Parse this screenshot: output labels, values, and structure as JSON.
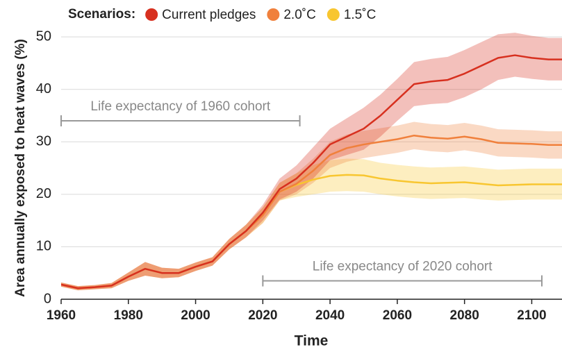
{
  "chart_data": {
    "type": "line",
    "legend_title": "Scenarios:",
    "y_label": "Area annually exposed to heat waves (%)",
    "x_label": "Time",
    "x": [
      1960,
      1965,
      1970,
      1975,
      1980,
      1985,
      1990,
      1995,
      2000,
      2005,
      2010,
      2015,
      2020,
      2025,
      2030,
      2035,
      2040,
      2045,
      2050,
      2055,
      2060,
      2065,
      2070,
      2075,
      2080,
      2085,
      2090,
      2095,
      2100,
      2105,
      2109
    ],
    "series": [
      {
        "name": "1.5˚C",
        "color": "#f8c630",
        "values": [
          2.8,
          2.1,
          2.3,
          2.6,
          4.3,
          5.8,
          5.0,
          5.0,
          6.2,
          7.2,
          10.5,
          13.0,
          16.0,
          20.5,
          21.8,
          22.8,
          23.5,
          23.7,
          23.6,
          23.0,
          22.6,
          22.3,
          22.1,
          22.2,
          22.3,
          22.0,
          21.7,
          21.8,
          21.9,
          21.9,
          21.9
        ],
        "lower": [
          2.4,
          1.7,
          1.9,
          2.1,
          3.5,
          4.5,
          4.0,
          4.2,
          5.4,
          6.4,
          9.5,
          11.8,
          14.5,
          18.8,
          19.5,
          20.0,
          20.5,
          20.6,
          20.5,
          20.0,
          19.6,
          19.3,
          19.1,
          19.2,
          19.3,
          19.0,
          18.8,
          18.9,
          19.0,
          19.0,
          19.0
        ],
        "upper": [
          3.2,
          2.5,
          2.7,
          3.1,
          5.1,
          7.1,
          6.0,
          5.8,
          7.0,
          8.0,
          11.5,
          14.2,
          17.5,
          22.2,
          24.0,
          25.6,
          26.5,
          26.8,
          26.7,
          26.0,
          25.6,
          25.3,
          25.1,
          25.2,
          25.3,
          25.0,
          24.7,
          24.8,
          24.9,
          24.9,
          24.9
        ]
      },
      {
        "name": "2.0˚C",
        "color": "#f0803c",
        "values": [
          2.8,
          2.1,
          2.3,
          2.6,
          4.3,
          5.8,
          5.0,
          5.0,
          6.2,
          7.2,
          10.5,
          13.0,
          16.0,
          20.5,
          22.0,
          24.5,
          27.5,
          28.8,
          29.5,
          30.0,
          30.5,
          31.2,
          30.8,
          30.6,
          31.0,
          30.5,
          29.8,
          29.7,
          29.6,
          29.4,
          29.4
        ],
        "lower": [
          2.4,
          1.7,
          1.9,
          2.1,
          3.5,
          4.5,
          4.0,
          4.2,
          5.4,
          6.4,
          9.5,
          11.8,
          14.5,
          18.8,
          20.0,
          22.2,
          25.0,
          26.2,
          26.9,
          27.4,
          27.9,
          28.6,
          28.2,
          28.0,
          28.4,
          27.9,
          27.2,
          27.1,
          27.0,
          26.8,
          26.8
        ],
        "upper": [
          3.2,
          2.5,
          2.7,
          3.1,
          5.1,
          7.1,
          6.0,
          5.8,
          7.0,
          8.0,
          11.5,
          14.2,
          17.5,
          22.2,
          24.0,
          26.8,
          30.0,
          31.4,
          32.1,
          32.6,
          33.1,
          33.8,
          33.4,
          33.2,
          33.6,
          33.1,
          32.4,
          32.3,
          32.2,
          32.0,
          32.0
        ]
      },
      {
        "name": "Current pledges",
        "color": "#d7301f",
        "values": [
          2.8,
          2.1,
          2.3,
          2.6,
          4.3,
          5.8,
          5.0,
          5.0,
          6.2,
          7.2,
          10.5,
          13.0,
          16.5,
          21.0,
          23.0,
          26.0,
          29.5,
          31.0,
          32.5,
          35.0,
          38.0,
          41.0,
          41.5,
          41.8,
          43.0,
          44.5,
          46.0,
          46.5,
          46.0,
          45.7,
          45.7
        ],
        "lower": [
          2.4,
          1.7,
          1.9,
          2.1,
          3.5,
          4.5,
          4.0,
          4.2,
          5.4,
          6.4,
          9.5,
          11.8,
          15.0,
          19.0,
          20.5,
          23.0,
          26.5,
          27.5,
          28.5,
          31.0,
          34.0,
          36.8,
          37.2,
          37.4,
          38.5,
          40.0,
          41.8,
          42.4,
          42.0,
          41.7,
          41.7
        ],
        "upper": [
          3.2,
          2.5,
          2.7,
          3.1,
          5.1,
          7.1,
          6.0,
          5.8,
          7.0,
          8.0,
          11.5,
          14.2,
          18.0,
          23.0,
          25.5,
          29.0,
          32.5,
          34.5,
          36.5,
          39.0,
          42.0,
          45.2,
          45.8,
          46.2,
          47.5,
          49.0,
          50.5,
          50.8,
          50.2,
          49.8,
          49.8
        ]
      }
    ],
    "legend_order": [
      2,
      1,
      0
    ],
    "annotations": [
      {
        "text": "Life expectancy of 1960 cohort",
        "x": [
          1960,
          2031
        ],
        "y": 34
      },
      {
        "text": "Life expectancy of 2020 cohort",
        "x": [
          2020,
          2103
        ],
        "y": 3.5
      }
    ],
    "xlim": [
      1960,
      2109
    ],
    "ylim": [
      0,
      52
    ],
    "xticks": [
      1960,
      1980,
      2000,
      2020,
      2040,
      2060,
      2080,
      2100
    ],
    "yticks": [
      0,
      10,
      20,
      30,
      40,
      50
    ],
    "grid": true
  }
}
